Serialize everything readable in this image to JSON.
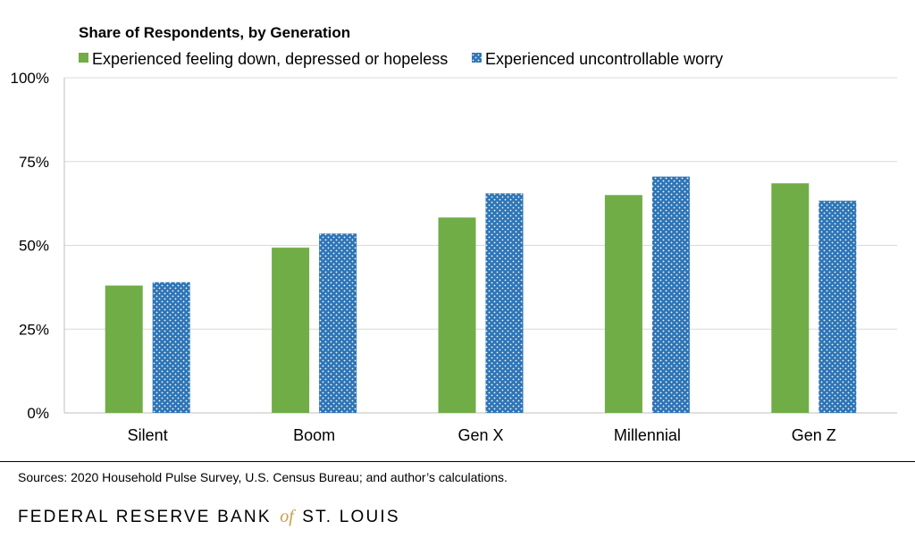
{
  "colors": {
    "series1": "#70ad47",
    "series2": "#2e75b6",
    "dot": "#ffffff",
    "grid": "#d9d9d9",
    "axis": "#bfbfbf",
    "logo_accent": "#c8a04a"
  },
  "chart_data": {
    "type": "bar",
    "title": "Share of Respondents, by Generation",
    "categories": [
      "Silent",
      "Boom",
      "Gen X",
      "Millennial",
      "Gen Z"
    ],
    "series": [
      {
        "name": "Experienced feeling down, depressed or hopeless",
        "values": [
          38,
          49.3,
          58.3,
          65,
          68.5
        ],
        "fill": "solid"
      },
      {
        "name": "Experienced uncontrollable worry",
        "values": [
          39,
          53.5,
          65.5,
          70.5,
          63.3
        ],
        "fill": "dotted"
      }
    ],
    "ylim": [
      0,
      100
    ],
    "yticks": [
      0,
      25,
      50,
      75,
      100
    ],
    "ytick_labels": [
      "0%",
      "25%",
      "50%",
      "75%",
      "100%"
    ],
    "grid": true,
    "legend_position": "top-left"
  },
  "footer": {
    "source": "Sources: 2020 Household Pulse Survey, U.S. Census Bureau; and author’s calculations.",
    "logo_left": "FEDERAL RESERVE BANK",
    "logo_of": "of",
    "logo_right": "ST. LOUIS"
  }
}
